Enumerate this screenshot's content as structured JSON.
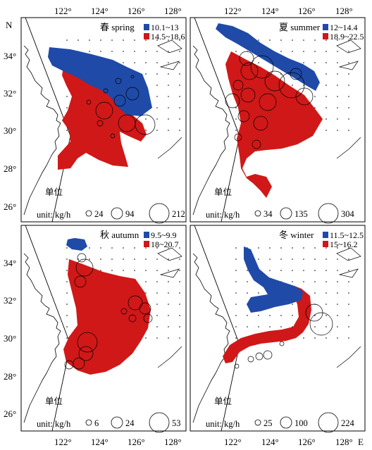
{
  "axes": {
    "lon_ticks_top": [
      "122°",
      "124°",
      "126°",
      "128°"
    ],
    "lon_ticks_bottom": [
      "122°",
      "124°",
      "126°",
      "128°"
    ],
    "lat_ticks_left": [
      "34°",
      "32°",
      "30°",
      "28°",
      "26°"
    ],
    "north_label": "N",
    "east_label": "E"
  },
  "colors": {
    "low": "#1f4aa8",
    "high": "#d01818",
    "coast": "#000000"
  },
  "panels": [
    {
      "id": "spring",
      "title": "春 spring",
      "legend": [
        {
          "color": "#1f4aa8",
          "label": "10.1~13"
        },
        {
          "color": "#d01818",
          "label": "14.5~18.6"
        }
      ],
      "unit_cn": "单位",
      "unit_en": "unit: kg/h",
      "sizes": [
        "24",
        "94",
        "212"
      ]
    },
    {
      "id": "summer",
      "title": "夏 summer",
      "legend": [
        {
          "color": "#1f4aa8",
          "label": "12~14.4"
        },
        {
          "color": "#d01818",
          "label": "18.9~22.5"
        }
      ],
      "unit_cn": "单位",
      "unit_en": "unit: kg/h",
      "sizes": [
        "34",
        "135",
        "304"
      ]
    },
    {
      "id": "autumn",
      "title": "秋 autumn",
      "legend": [
        {
          "color": "#1f4aa8",
          "label": "9.5~9.9"
        },
        {
          "color": "#d01818",
          "label": "18~20.7"
        }
      ],
      "unit_cn": "单位",
      "unit_en": "unit: kg/h",
      "sizes": [
        "6",
        "24",
        "53"
      ]
    },
    {
      "id": "winter",
      "title": "冬 winter",
      "legend": [
        {
          "color": "#1f4aa8",
          "label": "11.5~12.5"
        },
        {
          "color": "#d01818",
          "label": "15~16.2"
        }
      ],
      "unit_cn": "单位",
      "unit_en": "unit: kg/h",
      "sizes": [
        "25",
        "100",
        "224"
      ]
    }
  ]
}
